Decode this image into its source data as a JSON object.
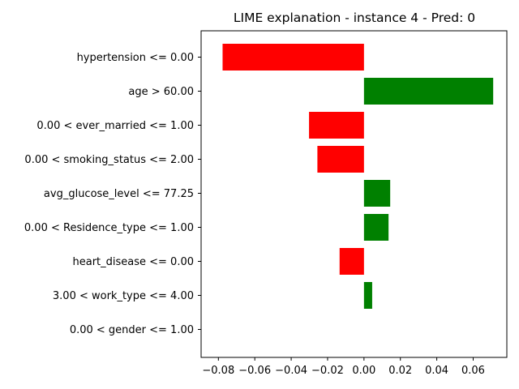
{
  "chart_data": {
    "type": "bar",
    "orientation": "horizontal",
    "title": "LIME explanation - instance 4 - Pred: 0",
    "xlabel": "",
    "ylabel": "",
    "categories": [
      "hypertension <= 0.00",
      "age > 60.00",
      "0.00 < ever_married <= 1.00",
      "0.00 < smoking_status <= 2.00",
      "avg_glucose_level <= 77.25",
      "0.00 < Residence_type <= 1.00",
      "heart_disease <= 0.00",
      "3.00 < work_type <= 4.00",
      "0.00 < gender <= 1.00"
    ],
    "values": [
      -0.0777,
      0.071,
      -0.0302,
      -0.0256,
      0.0144,
      0.0135,
      -0.0134,
      0.0045,
      0.0
    ],
    "xlim": [
      -0.0895,
      0.0785
    ],
    "xticks": [
      -0.08,
      -0.06,
      -0.04,
      -0.02,
      0.0,
      0.02,
      0.04,
      0.06
    ],
    "xtick_labels": [
      "−0.08",
      "−0.06",
      "−0.04",
      "−0.02",
      "0.00",
      "0.02",
      "0.04",
      "0.06"
    ],
    "colors": {
      "positive": "#008000",
      "negative": "#ff0000"
    },
    "grid": false,
    "legend": "none"
  }
}
